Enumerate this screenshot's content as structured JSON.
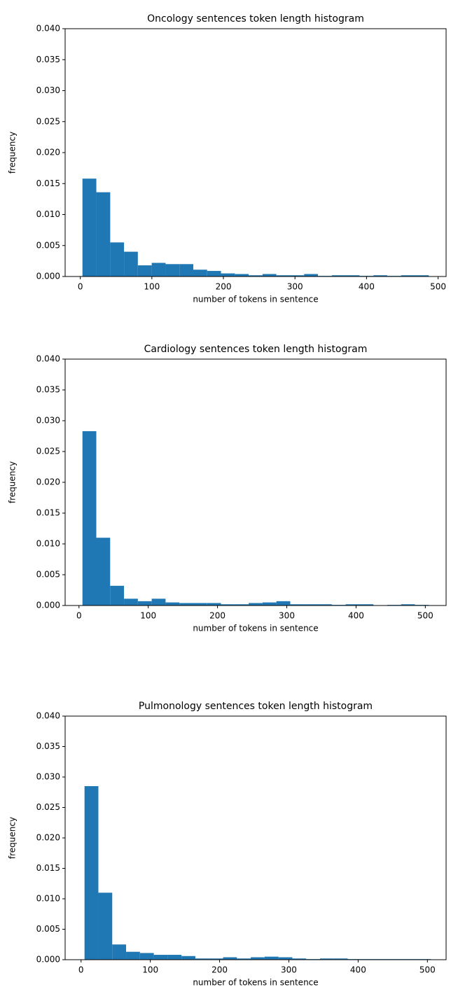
{
  "chart_data": [
    {
      "type": "histogram",
      "title": "Oncology sentences token length histogram",
      "xlabel": "number of tokens in sentence",
      "ylabel": "frequency",
      "color": "#1f77b4",
      "bins": [
        3,
        22.4,
        41.8,
        61.1,
        80.4,
        99.8,
        119.2,
        138.5,
        157.9,
        177.2,
        196.6,
        216,
        235.3,
        254.7,
        274,
        293.4,
        312.8,
        332.1,
        351.5,
        370.8,
        390.2,
        409.6,
        428.9,
        448.3,
        467.6,
        487
      ],
      "values": [
        0.0158,
        0.0136,
        0.0055,
        0.004,
        0.0018,
        0.0022,
        0.002,
        0.002,
        0.0011,
        0.0009,
        0.0005,
        0.0004,
        0.0002,
        0.0004,
        0.0002,
        0.0002,
        0.0004,
        0.0001,
        0.0002,
        0.0002,
        0.0001,
        0.0002,
        0.0001,
        0.0002,
        0.0002
      ],
      "xlim": [
        -21.2,
        511.2
      ],
      "xticks": [
        0,
        100,
        200,
        300,
        400,
        500
      ],
      "ylim": [
        0,
        0.04
      ],
      "yticks": [
        {
          "value": 0,
          "label": "0.000"
        },
        0.005,
        {
          "value": 0.01,
          "label": "0.010"
        },
        0.015,
        {
          "value": 0.02,
          "label": "0.020"
        },
        0.025,
        {
          "value": 0.03,
          "label": "0.030"
        },
        0.035,
        {
          "value": 0.04,
          "label": "0.040"
        }
      ]
    },
    {
      "type": "histogram",
      "title": "Cardiology sentences token length histogram",
      "xlabel": "number of tokens in sentence",
      "ylabel": "frequency",
      "color": "#1f77b4",
      "bins": [
        5,
        25,
        45,
        65,
        85,
        105,
        125,
        145,
        165,
        185,
        205,
        225,
        245,
        265,
        285,
        305,
        325,
        345,
        365,
        385,
        405,
        425,
        445,
        465,
        485,
        505
      ],
      "values": [
        0.0283,
        0.011,
        0.0032,
        0.0011,
        0.0007,
        0.0011,
        0.0005,
        0.0004,
        0.0004,
        0.0004,
        0.0002,
        0.0002,
        0.0004,
        0.0005,
        0.0007,
        0.0002,
        0.0002,
        0.0002,
        0.0001,
        0.0002,
        0.0002,
        0,
        0.0001,
        0.0002,
        0.0001
      ],
      "xlim": [
        -20,
        530
      ],
      "xticks": [
        0,
        100,
        200,
        300,
        400,
        500
      ],
      "ylim": [
        0,
        0.04
      ],
      "yticks": [
        {
          "value": 0,
          "label": "0.000"
        },
        0.005,
        {
          "value": 0.01,
          "label": "0.010"
        },
        0.015,
        {
          "value": 0.02,
          "label": "0.020"
        },
        0.025,
        {
          "value": 0.03,
          "label": "0.030"
        },
        0.035,
        {
          "value": 0.04,
          "label": "0.040"
        }
      ]
    },
    {
      "type": "histogram",
      "title": "Pulmonology sentences token length histogram",
      "xlabel": "number of tokens in sentence",
      "ylabel": "frequency",
      "color": "#1f77b4",
      "bins": [
        5,
        25,
        45,
        65,
        85,
        105,
        125,
        145,
        165,
        185,
        205,
        225,
        245,
        265,
        285,
        305,
        325,
        345,
        365,
        385,
        405,
        425,
        445,
        465,
        485,
        505
      ],
      "values": [
        0.0285,
        0.011,
        0.0025,
        0.0013,
        0.0011,
        0.0008,
        0.0008,
        0.0006,
        0.0002,
        0.0002,
        0.0004,
        0.0002,
        0.0004,
        0.0005,
        0.0004,
        0.0002,
        0.0001,
        0.0002,
        0.0002,
        0.0001,
        0.0001,
        0.0001,
        0.0001,
        0.0001,
        0.0001
      ],
      "xlim": [
        -23,
        527
      ],
      "xticks": [
        0,
        100,
        200,
        300,
        400,
        500
      ],
      "ylim": [
        0,
        0.04
      ],
      "yticks": [
        {
          "value": 0,
          "label": "0.000"
        },
        0.005,
        {
          "value": 0.01,
          "label": "0.010"
        },
        0.015,
        {
          "value": 0.02,
          "label": "0.020"
        },
        0.025,
        {
          "value": 0.03,
          "label": "0.030"
        },
        0.035,
        {
          "value": 0.04,
          "label": "0.040"
        }
      ]
    }
  ]
}
